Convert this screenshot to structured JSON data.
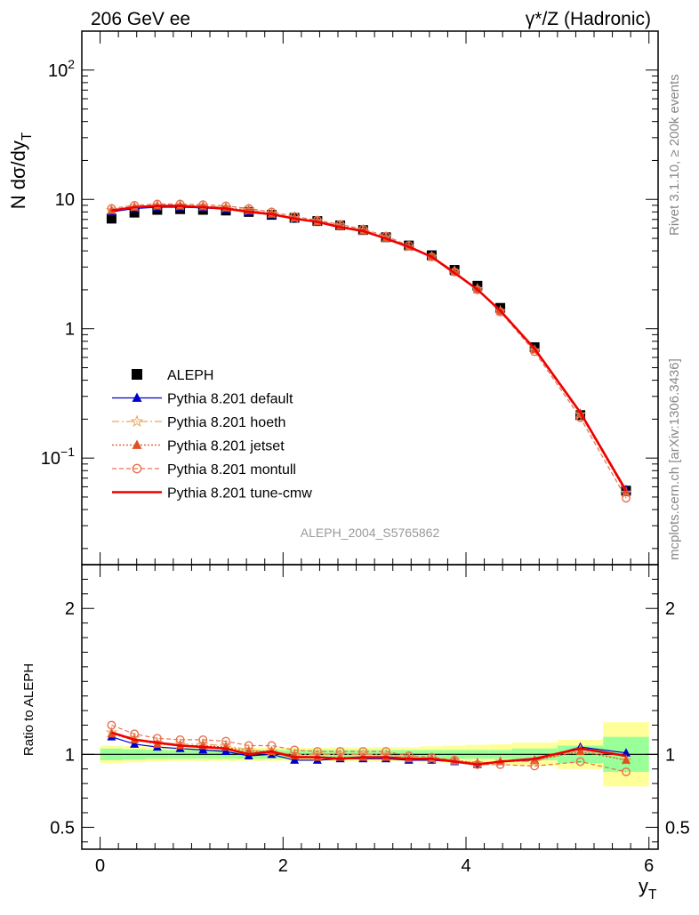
{
  "header": {
    "left_label": "206 GeV ee",
    "right_label": "γ*/Z (Hadronic)"
  },
  "side_text": {
    "rivet": "Rivet 3.1.10, ≥ 200k events",
    "mcplots": "mcplots.cern.ch [arXiv:1306.3436]"
  },
  "analysis_id": "ALEPH_2004_S5765862",
  "colors": {
    "data": "#000000",
    "default": "#0000cc",
    "hoeth": "#e8a860",
    "jetset": "#e05020",
    "montull": "#e87050",
    "tune_cmw": "#ee0000",
    "band_inner": "#99ff99",
    "band_outer": "#ffff99"
  },
  "chart_data": [
    {
      "type": "line",
      "panel": "main",
      "ylabel": "N dσ/dy_T",
      "yscale": "log",
      "ylim": [
        0.015,
        200
      ],
      "xlim": [
        -0.2,
        6.1
      ],
      "y_tick_labels": [
        "10^-1",
        "1",
        "10",
        "10^2"
      ],
      "x": [
        0.125,
        0.375,
        0.625,
        0.875,
        1.125,
        1.375,
        1.625,
        1.875,
        2.125,
        2.375,
        2.625,
        2.875,
        3.125,
        3.375,
        3.625,
        3.875,
        4.125,
        4.375,
        4.75,
        5.25,
        5.75
      ],
      "series": [
        {
          "name": "ALEPH",
          "key": "data",
          "style": "square",
          "values": [
            7.1,
            7.9,
            8.3,
            8.4,
            8.3,
            8.2,
            8.0,
            7.6,
            7.2,
            6.8,
            6.3,
            5.8,
            5.1,
            4.4,
            3.7,
            2.85,
            2.15,
            1.45,
            0.72,
            0.215,
            0.056
          ]
        },
        {
          "name": "Pythia 8.201 default",
          "key": "default",
          "style": "triangle-solid",
          "values": [
            8.0,
            8.5,
            8.7,
            8.7,
            8.6,
            8.4,
            8.0,
            7.6,
            7.1,
            6.7,
            6.2,
            5.7,
            5.0,
            4.3,
            3.6,
            2.75,
            2.02,
            1.38,
            0.7,
            0.222,
            0.057
          ]
        },
        {
          "name": "Pythia 8.201 hoeth",
          "key": "hoeth",
          "style": "star-dashdot",
          "values": [
            8.3,
            8.8,
            9.0,
            9.0,
            8.9,
            8.7,
            8.3,
            7.8,
            7.2,
            6.8,
            6.3,
            5.8,
            5.1,
            4.3,
            3.6,
            2.78,
            2.03,
            1.37,
            0.68,
            0.218,
            0.054
          ]
        },
        {
          "name": "Pythia 8.201 jetset",
          "key": "jetset",
          "style": "triangle-dotted",
          "values": [
            8.2,
            8.7,
            8.9,
            8.9,
            8.8,
            8.6,
            8.2,
            7.7,
            7.2,
            6.7,
            6.2,
            5.7,
            5.0,
            4.3,
            3.6,
            2.75,
            2.02,
            1.37,
            0.69,
            0.22,
            0.054
          ]
        },
        {
          "name": "Pythia 8.201 montull",
          "key": "montull",
          "style": "circle-dashed",
          "values": [
            8.5,
            9.0,
            9.2,
            9.2,
            9.1,
            8.9,
            8.5,
            8.0,
            7.4,
            6.9,
            6.4,
            5.9,
            5.2,
            4.4,
            3.6,
            2.75,
            2.0,
            1.35,
            0.665,
            0.205,
            0.049
          ]
        },
        {
          "name": "Pythia 8.201 tune-cmw",
          "key": "tune_cmw",
          "style": "line-solid",
          "values": [
            8.2,
            8.7,
            8.9,
            8.9,
            8.7,
            8.5,
            8.0,
            7.7,
            7.1,
            6.7,
            6.1,
            5.7,
            4.98,
            4.3,
            3.6,
            2.7,
            2.01,
            1.38,
            0.7,
            0.225,
            0.056
          ]
        }
      ]
    },
    {
      "type": "line",
      "panel": "ratio",
      "ylabel": "Ratio to ALEPH",
      "xlabel": "y_T",
      "ylim": [
        0.35,
        2.3
      ],
      "xlim": [
        -0.2,
        6.1
      ],
      "y_tick_labels": [
        "0.5",
        "1",
        "2"
      ],
      "x_tick_labels": [
        "0",
        "2",
        "4",
        "6"
      ],
      "x": [
        0.125,
        0.375,
        0.625,
        0.875,
        1.125,
        1.375,
        1.625,
        1.875,
        2.125,
        2.375,
        2.625,
        2.875,
        3.125,
        3.375,
        3.625,
        3.875,
        4.125,
        4.375,
        4.75,
        5.25,
        5.75
      ],
      "bands": {
        "bin_edges": [
          0.0,
          0.25,
          0.5,
          0.75,
          1.0,
          1.25,
          1.5,
          1.75,
          2.0,
          2.25,
          2.5,
          2.75,
          3.0,
          3.25,
          3.5,
          3.75,
          4.0,
          4.25,
          4.5,
          5.0,
          5.5,
          6.0
        ],
        "inner": [
          0.04,
          0.035,
          0.03,
          0.03,
          0.03,
          0.03,
          0.03,
          0.03,
          0.03,
          0.03,
          0.03,
          0.03,
          0.03,
          0.03,
          0.03,
          0.03,
          0.03,
          0.03,
          0.04,
          0.06,
          0.12
        ],
        "outer": [
          0.06,
          0.055,
          0.05,
          0.045,
          0.045,
          0.045,
          0.045,
          0.045,
          0.045,
          0.045,
          0.05,
          0.05,
          0.05,
          0.05,
          0.055,
          0.06,
          0.065,
          0.07,
          0.08,
          0.1,
          0.22
        ]
      },
      "series": [
        {
          "name": "Pythia 8.201 default",
          "key": "default",
          "style": "triangle-solid",
          "values": [
            1.12,
            1.07,
            1.05,
            1.04,
            1.03,
            1.02,
            0.99,
            1.0,
            0.96,
            0.96,
            0.97,
            0.97,
            0.97,
            0.96,
            0.96,
            0.95,
            0.93,
            0.95,
            0.96,
            1.05,
            1.01
          ]
        },
        {
          "name": "Pythia 8.201 hoeth",
          "key": "hoeth",
          "style": "star-dashdot",
          "values": [
            1.15,
            1.11,
            1.08,
            1.07,
            1.07,
            1.06,
            1.03,
            1.02,
            1.0,
            1.0,
            1.0,
            1.0,
            1.0,
            0.98,
            0.97,
            0.96,
            0.94,
            0.95,
            0.95,
            1.03,
            0.96
          ]
        },
        {
          "name": "Pythia 8.201 jetset",
          "key": "jetset",
          "style": "triangle-dotted",
          "values": [
            1.14,
            1.1,
            1.07,
            1.06,
            1.06,
            1.05,
            1.02,
            1.02,
            0.99,
            0.98,
            0.98,
            0.98,
            0.98,
            0.97,
            0.97,
            0.96,
            0.94,
            0.95,
            0.96,
            1.02,
            0.96
          ]
        },
        {
          "name": "Pythia 8.201 montull",
          "key": "montull",
          "style": "circle-dashed",
          "values": [
            1.2,
            1.14,
            1.11,
            1.1,
            1.1,
            1.09,
            1.06,
            1.06,
            1.03,
            1.02,
            1.02,
            1.02,
            1.02,
            0.99,
            0.98,
            0.96,
            0.93,
            0.93,
            0.92,
            0.95,
            0.88
          ]
        },
        {
          "name": "Pythia 8.201 tune-cmw",
          "key": "tune_cmw",
          "style": "line-solid",
          "values": [
            1.15,
            1.1,
            1.08,
            1.06,
            1.05,
            1.04,
            1.0,
            1.02,
            0.98,
            0.98,
            0.97,
            0.98,
            0.98,
            0.97,
            0.97,
            0.95,
            0.93,
            0.95,
            0.97,
            1.04,
            0.99
          ]
        }
      ]
    }
  ]
}
